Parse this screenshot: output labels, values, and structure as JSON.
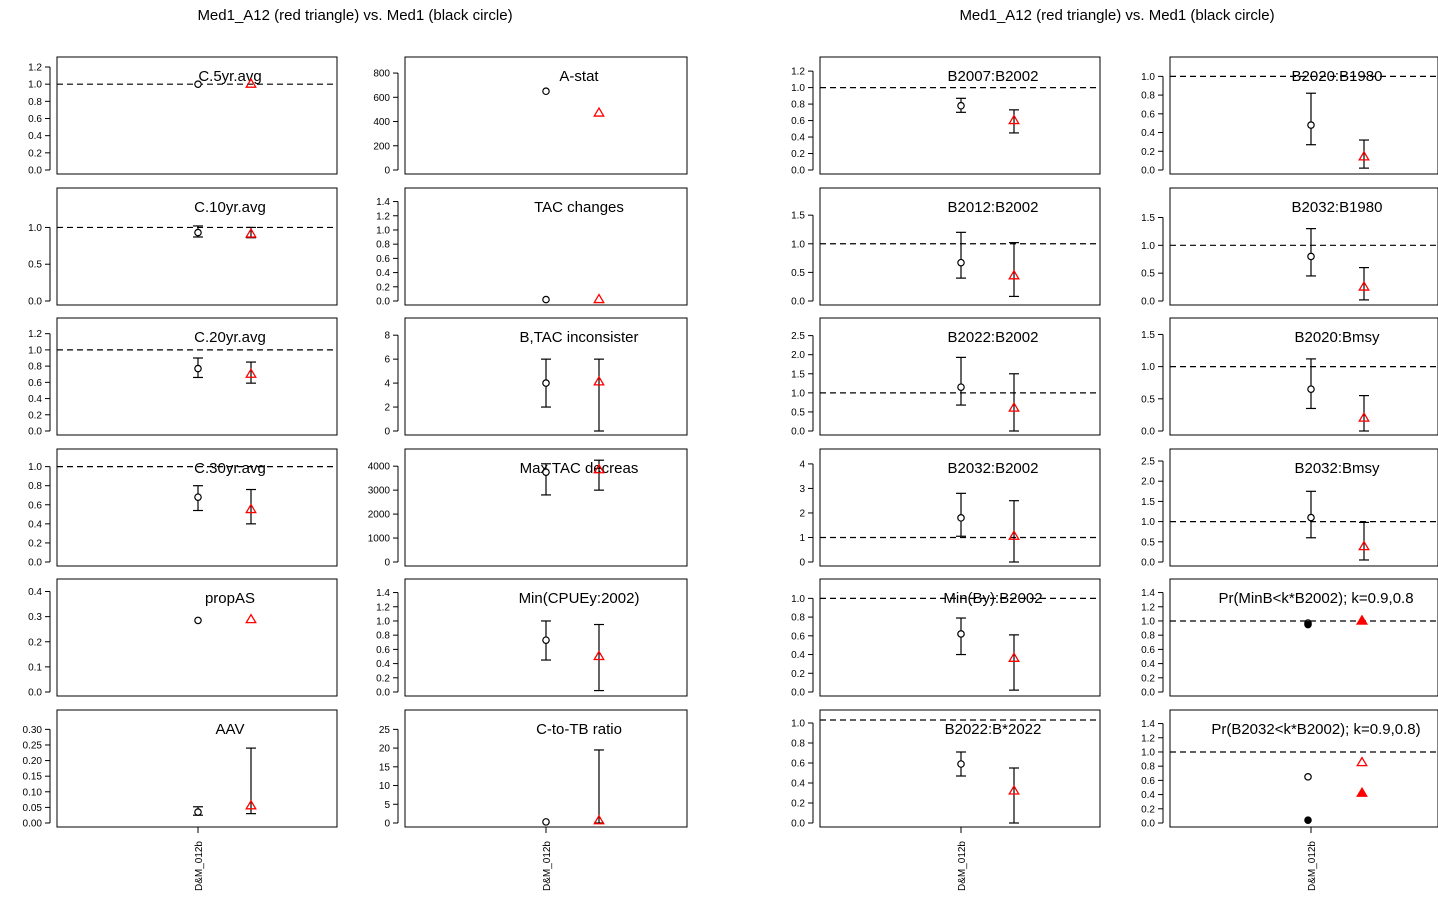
{
  "headers": [
    "Med1_A12 (red triangle) vs. Med1 (black circle)",
    "Med1_A12 (red triangle) vs. Med1 (black circle)"
  ],
  "chart_data": [
    {
      "type": "scatter",
      "title": "C.5yr.avg",
      "ylim": [
        0,
        1.2
      ],
      "ticks": [
        "0.0",
        "0.2",
        "0.4",
        "0.6",
        "0.8",
        "1.0",
        "1.2"
      ],
      "ref": 1.0,
      "series": [
        {
          "name": "Med1",
          "marker": "circle-open",
          "y": 1.0,
          "lo": null,
          "hi": null
        },
        {
          "name": "Med1_A12",
          "marker": "triangle-open",
          "y": 1.0,
          "lo": null,
          "hi": null
        }
      ]
    },
    {
      "type": "scatter",
      "title": "A-stat",
      "ylim": [
        0,
        850
      ],
      "ticks": [
        "0",
        "200",
        "400",
        "600",
        "800"
      ],
      "ref": null,
      "series": [
        {
          "name": "Med1",
          "marker": "circle-open",
          "y": 650,
          "lo": null,
          "hi": null
        },
        {
          "name": "Med1_A12",
          "marker": "triangle-open",
          "y": 470,
          "lo": null,
          "hi": null
        }
      ]
    },
    {
      "type": "scatter",
      "title": "B2007:B2002",
      "ylim": [
        0,
        1.25
      ],
      "ticks": [
        "0.0",
        "0.2",
        "0.4",
        "0.6",
        "0.8",
        "1.0",
        "1.2"
      ],
      "ref": 1.0,
      "series": [
        {
          "name": "Med1",
          "marker": "circle-open",
          "y": 0.78,
          "lo": 0.7,
          "hi": 0.87
        },
        {
          "name": "Med1_A12",
          "marker": "triangle-open",
          "y": 0.6,
          "lo": 0.45,
          "hi": 0.73
        }
      ]
    },
    {
      "type": "scatter",
      "title": "B2020:B1980",
      "ylim": [
        0,
        1.1
      ],
      "ticks": [
        "0.0",
        "0.2",
        "0.4",
        "0.6",
        "0.8",
        "1.0"
      ],
      "ref": 1.0,
      "series": [
        {
          "name": "Med1",
          "marker": "circle-open",
          "y": 0.48,
          "lo": 0.27,
          "hi": 0.82
        },
        {
          "name": "Med1_A12",
          "marker": "triangle-open",
          "y": 0.14,
          "lo": 0.02,
          "hi": 0.32
        }
      ]
    },
    {
      "type": "scatter",
      "title": "C.10yr.avg",
      "ylim": [
        0,
        1.4
      ],
      "ticks": [
        "0.0",
        "0.5",
        "1.0"
      ],
      "ref": 1.0,
      "series": [
        {
          "name": "Med1",
          "marker": "circle-open",
          "y": 0.93,
          "lo": 0.87,
          "hi": 1.02
        },
        {
          "name": "Med1_A12",
          "marker": "triangle-open",
          "y": 0.91,
          "lo": 0.86,
          "hi": 1.0
        }
      ]
    },
    {
      "type": "scatter",
      "title": "TAC changes",
      "ylim": [
        0,
        1.45
      ],
      "ticks": [
        "0.0",
        "0.2",
        "0.4",
        "0.6",
        "0.8",
        "1.0",
        "1.2",
        "1.4"
      ],
      "ref": null,
      "series": [
        {
          "name": "Med1",
          "marker": "circle-open",
          "y": 0.02,
          "lo": null,
          "hi": null
        },
        {
          "name": "Med1_A12",
          "marker": "triangle-open",
          "y": 0.02,
          "lo": null,
          "hi": null
        }
      ]
    },
    {
      "type": "scatter",
      "title": "B2012:B2002",
      "ylim": [
        0,
        1.8
      ],
      "ticks": [
        "0.0",
        "0.5",
        "1.0",
        "1.5"
      ],
      "ref": 1.0,
      "series": [
        {
          "name": "Med1",
          "marker": "circle-open",
          "y": 0.67,
          "lo": 0.4,
          "hi": 1.2
        },
        {
          "name": "Med1_A12",
          "marker": "triangle-open",
          "y": 0.44,
          "lo": 0.08,
          "hi": 1.02
        }
      ]
    },
    {
      "type": "scatter",
      "title": "B2032:B1980",
      "ylim": [
        0,
        1.85
      ],
      "ticks": [
        "0.0",
        "0.5",
        "1.0",
        "1.5"
      ],
      "ref": 1.0,
      "series": [
        {
          "name": "Med1",
          "marker": "circle-open",
          "y": 0.8,
          "lo": 0.45,
          "hi": 1.3
        },
        {
          "name": "Med1_A12",
          "marker": "triangle-open",
          "y": 0.25,
          "lo": 0.02,
          "hi": 0.6
        }
      ]
    },
    {
      "type": "scatter",
      "title": "C.20yr.avg",
      "ylim": [
        0,
        1.27
      ],
      "ticks": [
        "0.0",
        "0.2",
        "0.4",
        "0.6",
        "0.8",
        "1.0",
        "1.2"
      ],
      "ref": 1.0,
      "series": [
        {
          "name": "Med1",
          "marker": "circle-open",
          "y": 0.77,
          "lo": 0.66,
          "hi": 0.9
        },
        {
          "name": "Med1_A12",
          "marker": "triangle-open",
          "y": 0.7,
          "lo": 0.59,
          "hi": 0.85
        }
      ]
    },
    {
      "type": "scatter",
      "title": "B,TAC inconsister",
      "ylim": [
        0,
        8.6
      ],
      "ticks": [
        "0",
        "2",
        "4",
        "6",
        "8"
      ],
      "ref": null,
      "series": [
        {
          "name": "Med1",
          "marker": "circle-open",
          "y": 4.0,
          "lo": 2.0,
          "hi": 6.0
        },
        {
          "name": "Med1_A12",
          "marker": "triangle-open",
          "y": 4.1,
          "lo": 0.0,
          "hi": 6.0
        }
      ]
    },
    {
      "type": "scatter",
      "title": "B2022:B2002",
      "ylim": [
        0,
        2.7
      ],
      "ticks": [
        "0.0",
        "0.5",
        "1.0",
        "1.5",
        "2.0",
        "2.5"
      ],
      "ref": 1.0,
      "series": [
        {
          "name": "Med1",
          "marker": "circle-open",
          "y": 1.15,
          "lo": 0.68,
          "hi": 1.93
        },
        {
          "name": "Med1_A12",
          "marker": "triangle-open",
          "y": 0.6,
          "lo": 0.0,
          "hi": 1.5
        }
      ]
    },
    {
      "type": "scatter",
      "title": "B2020:Bmsy",
      "ylim": [
        0,
        1.6
      ],
      "ticks": [
        "0.0",
        "0.5",
        "1.0",
        "1.5"
      ],
      "ref": 1.0,
      "series": [
        {
          "name": "Med1",
          "marker": "circle-open",
          "y": 0.65,
          "lo": 0.35,
          "hi": 1.12
        },
        {
          "name": "Med1_A12",
          "marker": "triangle-open",
          "y": 0.2,
          "lo": 0.0,
          "hi": 0.55
        }
      ]
    },
    {
      "type": "scatter",
      "title": "C.30yr.avg",
      "ylim": [
        0,
        1.08
      ],
      "ticks": [
        "0.0",
        "0.2",
        "0.4",
        "0.6",
        "0.8",
        "1.0"
      ],
      "ref": 1.0,
      "series": [
        {
          "name": "Med1",
          "marker": "circle-open",
          "y": 0.68,
          "lo": 0.54,
          "hi": 0.8
        },
        {
          "name": "Med1_A12",
          "marker": "triangle-open",
          "y": 0.55,
          "lo": 0.4,
          "hi": 0.76
        }
      ]
    },
    {
      "type": "scatter",
      "title": "Max TAC decreas",
      "ylim": [
        0,
        4300
      ],
      "ticks": [
        "0",
        "1000",
        "2000",
        "3000",
        "4000"
      ],
      "ref": null,
      "series": [
        {
          "name": "Med1",
          "marker": "circle-open",
          "y": 3750,
          "lo": 2800,
          "hi": 4100
        },
        {
          "name": "Med1_A12",
          "marker": "triangle-open",
          "y": 3850,
          "lo": 3000,
          "hi": 4250
        }
      ]
    },
    {
      "type": "scatter",
      "title": "B2032:B2002",
      "ylim": [
        0,
        4.2
      ],
      "ticks": [
        "0",
        "1",
        "2",
        "3",
        "4"
      ],
      "ref": 1.0,
      "series": [
        {
          "name": "Med1",
          "marker": "circle-open",
          "y": 1.8,
          "lo": 1.05,
          "hi": 2.8
        },
        {
          "name": "Med1_A12",
          "marker": "triangle-open",
          "y": 1.05,
          "lo": 0.0,
          "hi": 2.5
        }
      ]
    },
    {
      "type": "scatter",
      "title": "B2032:Bmsy",
      "ylim": [
        0,
        2.55
      ],
      "ticks": [
        "0.0",
        "0.5",
        "1.0",
        "1.5",
        "2.0",
        "2.5"
      ],
      "ref": 1.0,
      "series": [
        {
          "name": "Med1",
          "marker": "circle-open",
          "y": 1.1,
          "lo": 0.6,
          "hi": 1.75
        },
        {
          "name": "Med1_A12",
          "marker": "triangle-open",
          "y": 0.38,
          "lo": 0.05,
          "hi": 0.98
        }
      ]
    },
    {
      "type": "scatter",
      "title": "propAS",
      "ylim": [
        0,
        0.41
      ],
      "ticks": [
        "0.0",
        "0.1",
        "0.2",
        "0.3",
        "0.4"
      ],
      "ref": null,
      "series": [
        {
          "name": "Med1",
          "marker": "circle-open",
          "y": 0.285,
          "lo": null,
          "hi": null
        },
        {
          "name": "Med1_A12",
          "marker": "triangle-open",
          "y": 0.288,
          "lo": null,
          "hi": null
        }
      ]
    },
    {
      "type": "scatter",
      "title": "Min(CPUEy:2002)",
      "ylim": [
        0,
        1.45
      ],
      "ticks": [
        "0.0",
        "0.2",
        "0.4",
        "0.6",
        "0.8",
        "1.0",
        "1.2",
        "1.4"
      ],
      "ref": null,
      "series": [
        {
          "name": "Med1",
          "marker": "circle-open",
          "y": 0.73,
          "lo": 0.45,
          "hi": 1.0
        },
        {
          "name": "Med1_A12",
          "marker": "triangle-open",
          "y": 0.5,
          "lo": 0.02,
          "hi": 0.95
        }
      ]
    },
    {
      "type": "scatter",
      "title": "Min(By):B2002",
      "ylim": [
        0,
        1.1
      ],
      "ticks": [
        "0.0",
        "0.2",
        "0.4",
        "0.6",
        "0.8",
        "1.0"
      ],
      "ref": 1.0,
      "series": [
        {
          "name": "Med1",
          "marker": "circle-open",
          "y": 0.62,
          "lo": 0.4,
          "hi": 0.79
        },
        {
          "name": "Med1_A12",
          "marker": "triangle-open",
          "y": 0.36,
          "lo": 0.02,
          "hi": 0.61
        }
      ]
    },
    {
      "type": "scatter",
      "title": "Pr(MinB<k*B2002); k=0.9,0.8",
      "ylim": [
        0,
        1.45
      ],
      "ticks": [
        "0.0",
        "0.2",
        "0.4",
        "0.6",
        "0.8",
        "1.0",
        "1.2",
        "1.4"
      ],
      "ref": 1.0,
      "series": [
        {
          "name": "Med1 k=0.9",
          "marker": "circle-open",
          "y": 0.97,
          "lo": null,
          "hi": null
        },
        {
          "name": "Med1 k=0.8",
          "marker": "circle-filled",
          "y": 0.95,
          "lo": null,
          "hi": null
        },
        {
          "name": "Med1_A12 k=0.9",
          "marker": "triangle-open",
          "y": 1.0,
          "lo": null,
          "hi": null
        },
        {
          "name": "Med1_A12 k=0.8",
          "marker": "triangle-filled",
          "y": 1.0,
          "lo": null,
          "hi": null
        }
      ]
    },
    {
      "type": "scatter",
      "title": "AAV",
      "ylim": [
        0,
        0.33
      ],
      "ticks": [
        "0.00",
        "0.05",
        "0.10",
        "0.15",
        "0.20",
        "0.25",
        "0.30"
      ],
      "ref": null,
      "series": [
        {
          "name": "Med1",
          "marker": "circle-open",
          "y": 0.035,
          "lo": 0.025,
          "hi": 0.052
        },
        {
          "name": "Med1_A12",
          "marker": "triangle-open",
          "y": 0.055,
          "lo": 0.03,
          "hi": 0.24
        }
      ]
    },
    {
      "type": "scatter",
      "title": "C-to-TB ratio",
      "ylim": [
        0,
        27.5
      ],
      "ticks": [
        "0",
        "5",
        "10",
        "15",
        "20",
        "25"
      ],
      "ref": null,
      "series": [
        {
          "name": "Med1",
          "marker": "circle-open",
          "y": 0.3,
          "lo": null,
          "hi": null
        },
        {
          "name": "Med1_A12",
          "marker": "triangle-open",
          "y": 0.6,
          "lo": 0.0,
          "hi": 19.5
        }
      ]
    },
    {
      "type": "scatter",
      "title": "B2022:B*2022",
      "ylim": [
        0,
        1.03
      ],
      "ticks": [
        "0.0",
        "0.2",
        "0.4",
        "0.6",
        "0.8",
        "1.0"
      ],
      "ref": 1.03,
      "series": [
        {
          "name": "Med1",
          "marker": "circle-open",
          "y": 0.59,
          "lo": 0.47,
          "hi": 0.71
        },
        {
          "name": "Med1_A12",
          "marker": "triangle-open",
          "y": 0.32,
          "lo": 0.0,
          "hi": 0.55
        }
      ]
    },
    {
      "type": "scatter",
      "title": "Pr(B2032<k*B2002); k=0.9,0.8)",
      "ylim": [
        0,
        1.45
      ],
      "ticks": [
        "0.0",
        "0.2",
        "0.4",
        "0.6",
        "0.8",
        "1.0",
        "1.2",
        "1.4"
      ],
      "ref": 1.0,
      "series": [
        {
          "name": "Med1 k=0.9",
          "marker": "circle-open",
          "y": 0.65,
          "lo": null,
          "hi": null
        },
        {
          "name": "Med1 k=0.8",
          "marker": "circle-filled",
          "y": 0.04,
          "lo": null,
          "hi": null
        },
        {
          "name": "Med1_A12 k=0.9",
          "marker": "triangle-open",
          "y": 0.85,
          "lo": null,
          "hi": null
        },
        {
          "name": "Med1_A12 k=0.8",
          "marker": "triangle-filled",
          "y": 0.42,
          "lo": null,
          "hi": null
        }
      ]
    }
  ],
  "xlabels": [
    "D&M_012b",
    "D&M_012b",
    "D&M_012b",
    "D&M_012b"
  ],
  "colors": {
    "circle": "#000000",
    "triangle": "#ff0000"
  }
}
